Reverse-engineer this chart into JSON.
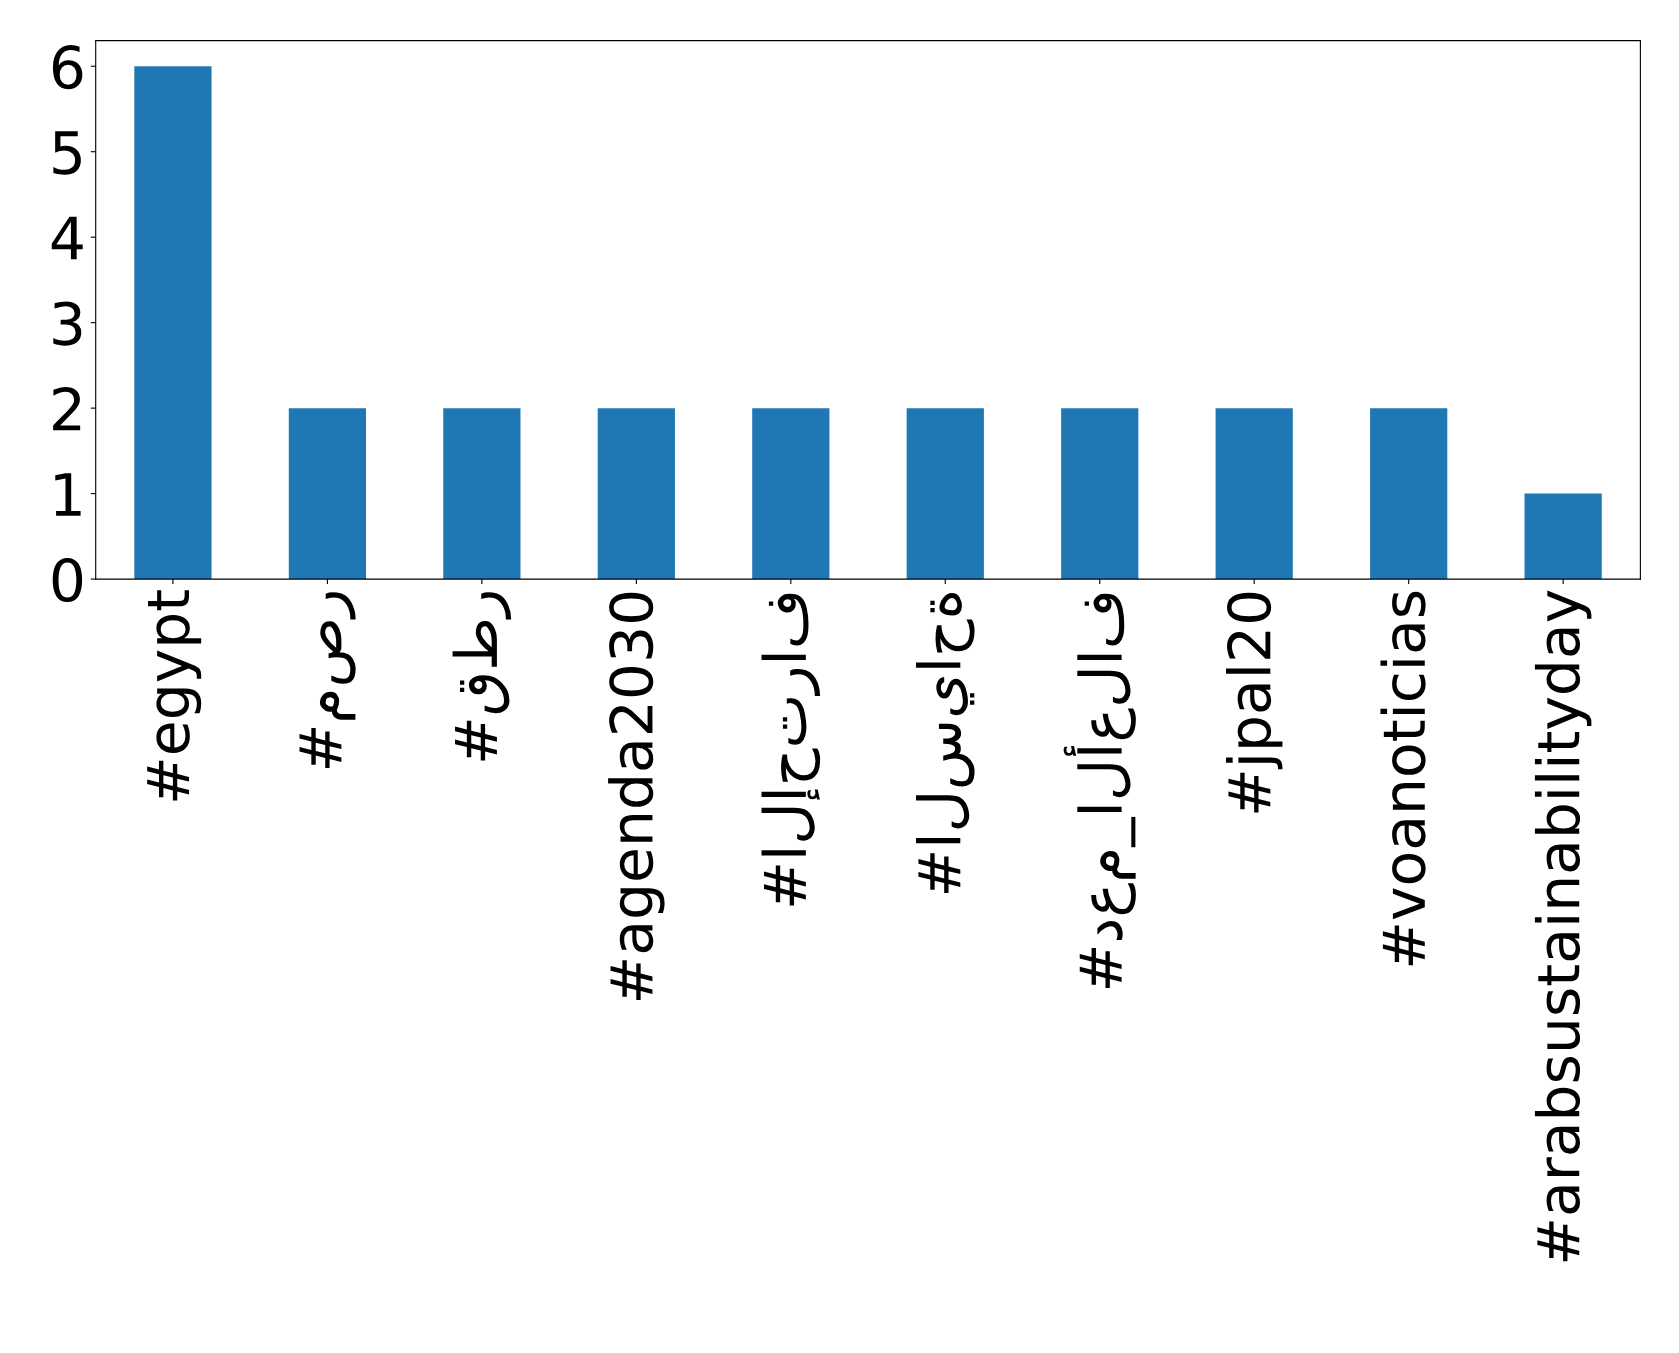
{
  "chart_data": {
    "type": "bar",
    "categories": [
      "#egypt",
      "#مصر",
      "#قطر",
      "#agenda2030",
      "#الإحتراف",
      "#السياحة",
      "#دعم_الأعلاف",
      "#jpal20",
      "#voanoticias",
      "#arabsustainabilityday"
    ],
    "values": [
      6,
      2,
      2,
      2,
      2,
      2,
      2,
      2,
      2,
      1
    ],
    "color": "#1f77b4",
    "ylim": [
      0,
      6.3
    ],
    "yticks": [
      0,
      1,
      2,
      3,
      4,
      5,
      6
    ],
    "grid": false,
    "legend": false
  }
}
